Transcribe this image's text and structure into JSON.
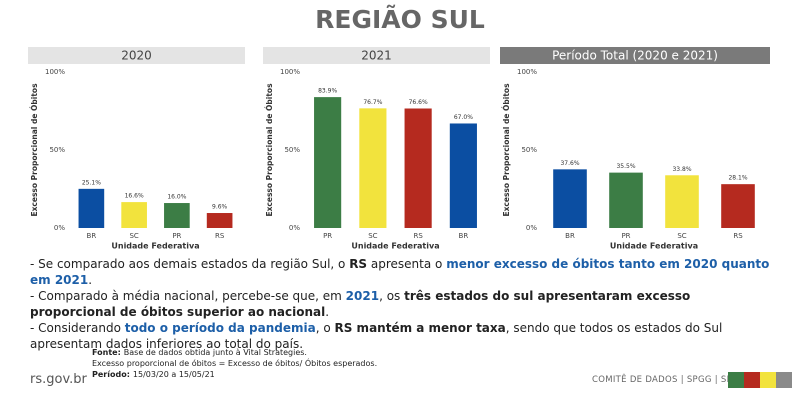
{
  "title": "REGIÃO SUL",
  "chart_data": [
    {
      "type": "bar",
      "title": "2020",
      "header_color": "#e4e4e4",
      "header_text_color": "#444444",
      "y_label": "Excesso Proporcional de Óbitos",
      "x_label": "Unidade Federativa",
      "categories": [
        "BR",
        "SC",
        "PR",
        "RS"
      ],
      "values": [
        25.1,
        16.6,
        16.0,
        9.6
      ],
      "value_labels": [
        "25.1%",
        "16.6%",
        "16.0%",
        "9.6%"
      ],
      "colors": [
        "#0b4ea2",
        "#f2e33d",
        "#3c7d45",
        "#b52a1f"
      ],
      "ylim": [
        0,
        100
      ],
      "yticks": [
        {
          "value": 0,
          "label": "0%"
        },
        {
          "value": 50,
          "label": "50%"
        },
        {
          "value": 100,
          "label": "100%"
        }
      ]
    },
    {
      "type": "bar",
      "title": "2021",
      "header_color": "#e4e4e4",
      "header_text_color": "#444444",
      "y_label": "Excesso Proporcional de Óbitos",
      "x_label": "Unidade Federativa",
      "categories": [
        "PR",
        "SC",
        "RS",
        "BR"
      ],
      "values": [
        83.9,
        76.7,
        76.6,
        67.0
      ],
      "value_labels": [
        "83.9%",
        "76.7%",
        "76.6%",
        "67.0%"
      ],
      "colors": [
        "#3c7d45",
        "#f2e33d",
        "#b52a1f",
        "#0b4ea2"
      ],
      "ylim": [
        0,
        100
      ],
      "yticks": [
        {
          "value": 0,
          "label": "0%"
        },
        {
          "value": 50,
          "label": "50%"
        },
        {
          "value": 100,
          "label": "100%"
        }
      ]
    },
    {
      "type": "bar",
      "title": "Período Total (2020 e 2021)",
      "header_color": "#7a7a7a",
      "header_text_color": "#ffffff",
      "y_label": "Excesso Proporcional de Óbitos",
      "x_label": "Unidade Federativa",
      "categories": [
        "BR",
        "PR",
        "SC",
        "RS"
      ],
      "values": [
        37.6,
        35.5,
        33.8,
        28.1
      ],
      "value_labels": [
        "37.6%",
        "35.5%",
        "33.8%",
        "28.1%"
      ],
      "colors": [
        "#0b4ea2",
        "#3c7d45",
        "#f2e33d",
        "#b52a1f"
      ],
      "ylim": [
        0,
        100
      ],
      "yticks": [
        {
          "value": 0,
          "label": "0%"
        },
        {
          "value": 50,
          "label": "50%"
        },
        {
          "value": 100,
          "label": "100%"
        }
      ]
    }
  ],
  "notes": [
    [
      {
        "text": "- Se comparado aos demais estados da região Sul, o "
      },
      {
        "text": "RS",
        "style": "bold"
      },
      {
        "text": " apresenta o "
      },
      {
        "text": "menor excesso de óbitos tanto em 2020 quanto em 2021",
        "style": "bold-blue"
      },
      {
        "text": "."
      }
    ],
    [
      {
        "text": "- Comparado à média nacional, percebe-se que, em "
      },
      {
        "text": "2021",
        "style": "bold-blue"
      },
      {
        "text": ", os "
      },
      {
        "text": "três estados do sul apresentaram excesso proporcional de óbitos superior ao nacional",
        "style": "bold"
      },
      {
        "text": "."
      }
    ],
    [
      {
        "text": "- Considerando "
      },
      {
        "text": "todo o período da pandemia",
        "style": "bold-blue"
      },
      {
        "text": ", o "
      },
      {
        "text": "RS mantém a menor taxa",
        "style": "bold"
      },
      {
        "text": ", sendo que todos os estados do Sul apresentam dados inferiores ao total do país."
      }
    ]
  ],
  "source": [
    {
      "label": "Fonte:",
      "text": "Base de dados obtida junto à Vital Strategies."
    },
    {
      "text": "Excesso proporcional de óbitos = Excesso de óbitos/ Óbitos esperados."
    },
    {
      "label": "Período:",
      "text": "15/03/20 a 15/05/21"
    }
  ],
  "site": "rs.gov.br",
  "footer": "COMITÊ DE DADOS | SPGG | SES"
}
